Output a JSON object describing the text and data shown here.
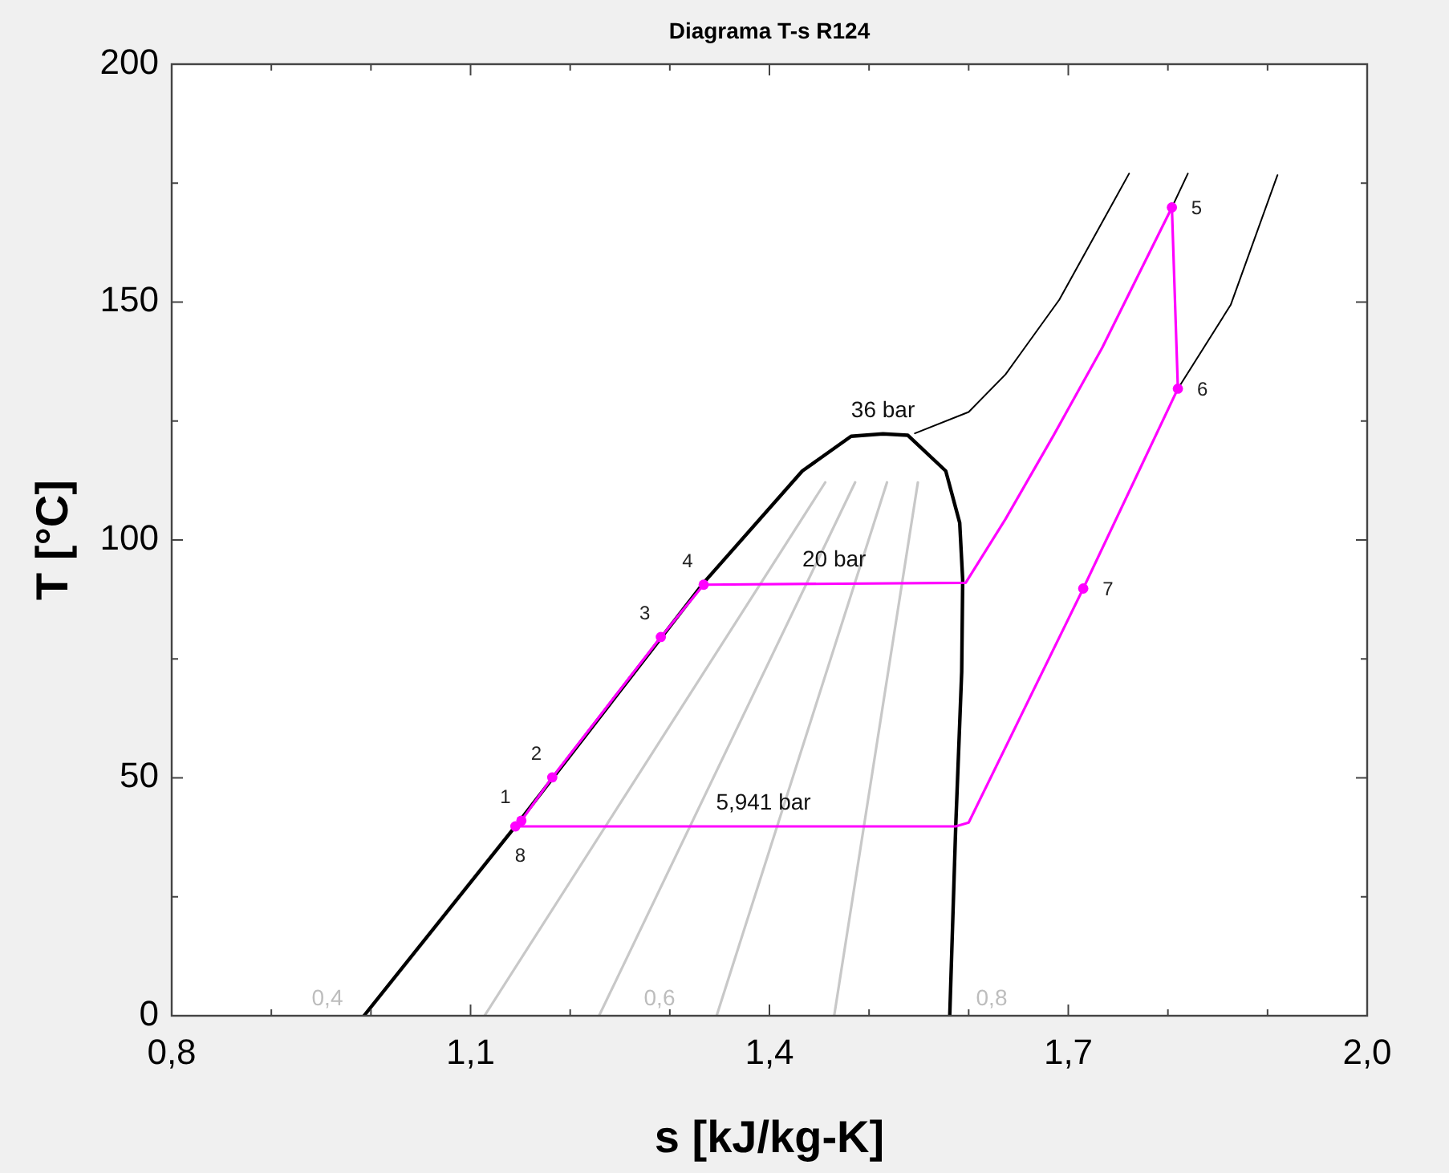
{
  "chart_data": {
    "type": "line",
    "title": "Diagrama T-s R124",
    "xlabel": "s [kJ/kg-K]",
    "ylabel": "T [°C]",
    "xlim": [
      0.8,
      2.0
    ],
    "ylim": [
      0,
      200
    ],
    "xticks": [
      {
        "value": 0.8,
        "label": "0,8"
      },
      {
        "value": 0.9,
        "label": null
      },
      {
        "value": 1.0,
        "label": null
      },
      {
        "value": 1.1,
        "label": "1,1"
      },
      {
        "value": 1.2,
        "label": null
      },
      {
        "value": 1.3,
        "label": null
      },
      {
        "value": 1.4,
        "label": "1,4"
      },
      {
        "value": 1.5,
        "label": null
      },
      {
        "value": 1.6,
        "label": null
      },
      {
        "value": 1.7,
        "label": "1,7"
      },
      {
        "value": 1.8,
        "label": null
      },
      {
        "value": 1.9,
        "label": null
      },
      {
        "value": 2.0,
        "label": "2,0"
      }
    ],
    "yticks": [
      0,
      {
        "value": 25,
        "label": null
      },
      50,
      {
        "value": 75,
        "label": null
      },
      100,
      {
        "value": 125,
        "label": null
      },
      150,
      {
        "value": 175,
        "label": null
      },
      200
    ],
    "grid": false,
    "series": [
      {
        "color": "#000000",
        "line_style": "solid",
        "marker": "none",
        "x": [
          0.993,
          1.145,
          1.334,
          1.433,
          1.482,
          1.514,
          1.539,
          1.577,
          1.591,
          1.594,
          1.593,
          1.587,
          1.581
        ],
        "values": [
          0,
          39.8,
          91,
          114.5,
          121.8,
          122.3,
          122,
          114.5,
          103.6,
          91.6,
          72.3,
          39.8,
          0
        ]
      },
      {
        "color": "#000000",
        "line_style": "solid",
        "marker": "none",
        "x": [
          1.546,
          1.6,
          1.637,
          1.691,
          1.761
        ],
        "values": [
          122.4,
          126.9,
          134.8,
          150.5,
          177
        ]
      },
      {
        "color": "#000000",
        "line_style": "solid",
        "marker": "none",
        "x": [
          1.804,
          1.82
        ],
        "values": [
          169.9,
          177
        ]
      },
      {
        "color": "#000000",
        "line_style": "solid",
        "marker": "none",
        "x": [
          1.81,
          1.863,
          1.91
        ],
        "values": [
          131.8,
          149.4,
          176.7
        ]
      },
      {
        "color": "#c8c8c8",
        "line_style": "solid",
        "marker": "none",
        "x": [
          1.114,
          1.456
        ],
        "values": [
          0,
          112.1
        ]
      },
      {
        "color": "#c8c8c8",
        "line_style": "solid",
        "marker": "none",
        "x": [
          1.229,
          1.486
        ],
        "values": [
          0,
          112.1
        ]
      },
      {
        "color": "#c8c8c8",
        "line_style": "solid",
        "marker": "none",
        "x": [
          1.347,
          1.518
        ],
        "values": [
          0,
          112.1
        ]
      },
      {
        "color": "#c8c8c8",
        "line_style": "solid",
        "marker": "none",
        "x": [
          1.465,
          1.549
        ],
        "values": [
          0,
          112.1
        ]
      },
      {
        "color": "#ff00ff",
        "line_style": "solid",
        "marker": "none",
        "x": [
          1.145,
          1.151,
          1.182,
          1.291,
          1.334,
          1.597,
          1.637,
          1.685,
          1.734,
          1.804,
          1.81
        ],
        "values": [
          39.8,
          41,
          50.1,
          79.6,
          90.6,
          91,
          104.4,
          121.9,
          140.4,
          169.9,
          131.8
        ]
      },
      {
        "color": "#ff00ff",
        "line_style": "solid",
        "marker": "none",
        "x": [
          1.145,
          1.587,
          1.6,
          1.715,
          1.81
        ],
        "values": [
          39.8,
          39.8,
          40.6,
          89.8,
          131.8
        ]
      },
      {
        "type": "scatter",
        "color": "#ff00ff",
        "marker": "circle",
        "x": [
          1.151,
          1.182,
          1.291,
          1.334,
          1.804,
          1.81,
          1.715,
          1.145
        ],
        "values": [
          41,
          50.1,
          79.6,
          90.6,
          169.9,
          131.8,
          89.8,
          39.8
        ]
      }
    ],
    "annotations": [
      {
        "text": "1",
        "x": 1.151,
        "y": 41
      },
      {
        "text": "2",
        "x": 1.182,
        "y": 50.1
      },
      {
        "text": "3",
        "x": 1.291,
        "y": 79.6
      },
      {
        "text": "4",
        "x": 1.334,
        "y": 90.6
      },
      {
        "text": "5",
        "x": 1.804,
        "y": 169.9
      },
      {
        "text": "6",
        "x": 1.81,
        "y": 131.8
      },
      {
        "text": "7",
        "x": 1.715,
        "y": 89.8
      },
      {
        "text": "8",
        "x": 1.145,
        "y": 39.8
      },
      {
        "text": "36 bar",
        "x": 1.514,
        "y": 122.3
      },
      {
        "text": "20 bar",
        "x": 1.465,
        "y": 91
      },
      {
        "text": "5,941 bar",
        "x": 1.394,
        "y": 39.8
      },
      "0,4",
      "0,6",
      "0,8"
    ]
  }
}
